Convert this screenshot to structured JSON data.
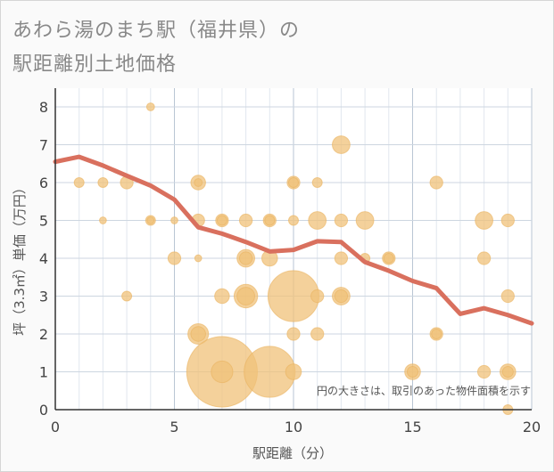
{
  "title_line1": "あわら湯のまち駅（福井県）の",
  "title_line2": "駅距離別土地価格",
  "chart_data": {
    "type": "scatter",
    "xlabel": "駅距離（分）",
    "ylabel": "坪（3.3㎡）単価（万円）",
    "xlim": [
      0,
      20
    ],
    "ylim": [
      0,
      8.5
    ],
    "xticks": [
      0,
      5,
      10,
      15,
      20
    ],
    "yticks": [
      0,
      1,
      2,
      3,
      4,
      5,
      6,
      7,
      8
    ],
    "grid": true,
    "note": "円の大きさは、取引のあった物件面積を示す",
    "colors": {
      "bubble": "#f0c27a",
      "bubble_stroke": "#e9b25f",
      "line": "#d9705e",
      "grid": "#cdd6e0",
      "axis": "#333333"
    },
    "bubbles": [
      {
        "x": 1,
        "y": 6,
        "s": 1
      },
      {
        "x": 2,
        "y": 6,
        "s": 1
      },
      {
        "x": 2,
        "y": 5,
        "s": 0.7
      },
      {
        "x": 3,
        "y": 6,
        "s": 1.3
      },
      {
        "x": 3,
        "y": 3,
        "s": 1
      },
      {
        "x": 4,
        "y": 8,
        "s": 0.8
      },
      {
        "x": 4,
        "y": 5,
        "s": 1
      },
      {
        "x": 4,
        "y": 5,
        "s": 0.7
      },
      {
        "x": 5,
        "y": 5,
        "s": 0.7
      },
      {
        "x": 5,
        "y": 4,
        "s": 1.3
      },
      {
        "x": 6,
        "y": 6,
        "s": 1.5
      },
      {
        "x": 6,
        "y": 6,
        "s": 0.8
      },
      {
        "x": 6,
        "y": 5,
        "s": 1.3
      },
      {
        "x": 6,
        "y": 4,
        "s": 0.7
      },
      {
        "x": 6,
        "y": 2,
        "s": 2.1
      },
      {
        "x": 6,
        "y": 2,
        "s": 1.5
      },
      {
        "x": 7,
        "y": 5,
        "s": 1.3
      },
      {
        "x": 7,
        "y": 5,
        "s": 1
      },
      {
        "x": 7,
        "y": 3,
        "s": 1.5
      },
      {
        "x": 7,
        "y": 1,
        "s": 7.2
      },
      {
        "x": 7,
        "y": 1,
        "s": 2.2
      },
      {
        "x": 8,
        "y": 5,
        "s": 1.3
      },
      {
        "x": 8,
        "y": 4,
        "s": 1.8
      },
      {
        "x": 8,
        "y": 4,
        "s": 1.3
      },
      {
        "x": 8,
        "y": 3,
        "s": 2.4
      },
      {
        "x": 8,
        "y": 3,
        "s": 1.8
      },
      {
        "x": 9,
        "y": 5,
        "s": 1.3
      },
      {
        "x": 9,
        "y": 5,
        "s": 1
      },
      {
        "x": 9,
        "y": 4,
        "s": 1.6
      },
      {
        "x": 9,
        "y": 1,
        "s": 5.2
      },
      {
        "x": 10,
        "y": 6,
        "s": 1.3
      },
      {
        "x": 10,
        "y": 6,
        "s": 1
      },
      {
        "x": 10,
        "y": 5,
        "s": 1
      },
      {
        "x": 10,
        "y": 3,
        "s": 5.2
      },
      {
        "x": 10,
        "y": 2,
        "s": 1.3
      },
      {
        "x": 10,
        "y": 1,
        "s": 1.6
      },
      {
        "x": 11,
        "y": 6,
        "s": 1
      },
      {
        "x": 11,
        "y": 5,
        "s": 1.8
      },
      {
        "x": 11,
        "y": 3,
        "s": 1.3
      },
      {
        "x": 11,
        "y": 2,
        "s": 1.3
      },
      {
        "x": 12,
        "y": 7,
        "s": 1.8
      },
      {
        "x": 12,
        "y": 5,
        "s": 1.3
      },
      {
        "x": 12,
        "y": 4,
        "s": 1.3
      },
      {
        "x": 12,
        "y": 3,
        "s": 1.8
      },
      {
        "x": 12,
        "y": 3,
        "s": 1.3
      },
      {
        "x": 13,
        "y": 5,
        "s": 1.8
      },
      {
        "x": 13,
        "y": 4,
        "s": 1
      },
      {
        "x": 14,
        "y": 4,
        "s": 1.3
      },
      {
        "x": 14,
        "y": 4,
        "s": 1
      },
      {
        "x": 15,
        "y": 1,
        "s": 1.6
      },
      {
        "x": 15,
        "y": 1,
        "s": 1.1
      },
      {
        "x": 16,
        "y": 6,
        "s": 1.3
      },
      {
        "x": 16,
        "y": 2,
        "s": 1.3
      },
      {
        "x": 16,
        "y": 2,
        "s": 1
      },
      {
        "x": 18,
        "y": 5,
        "s": 1.8
      },
      {
        "x": 18,
        "y": 4,
        "s": 1.3
      },
      {
        "x": 18,
        "y": 1,
        "s": 1.3
      },
      {
        "x": 19,
        "y": 5,
        "s": 1.3
      },
      {
        "x": 19,
        "y": 3,
        "s": 1.3
      },
      {
        "x": 19,
        "y": 1,
        "s": 1.6
      },
      {
        "x": 19,
        "y": 1,
        "s": 1.1
      },
      {
        "x": 19,
        "y": 0,
        "s": 1
      }
    ],
    "trend": {
      "x": [
        0,
        1,
        2,
        3,
        4,
        5,
        6,
        7,
        8,
        9,
        10,
        11,
        12,
        13,
        14,
        15,
        16,
        17,
        18,
        19,
        20
      ],
      "y": [
        6.55,
        6.68,
        6.45,
        6.18,
        5.92,
        5.55,
        4.82,
        4.65,
        4.43,
        4.18,
        4.22,
        4.45,
        4.43,
        3.9,
        3.67,
        3.4,
        3.21,
        2.53,
        2.68,
        2.5,
        2.28
      ]
    }
  }
}
